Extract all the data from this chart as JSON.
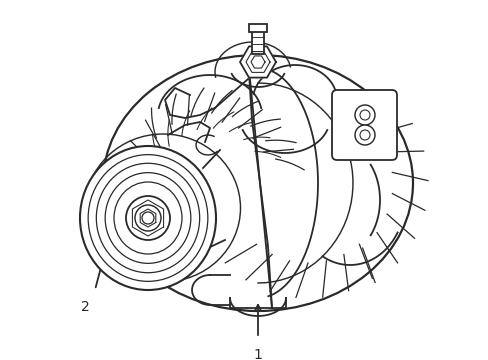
{
  "background_color": "#ffffff",
  "line_color": "#2a2a2a",
  "line_width": 1.3,
  "label1": "1",
  "label2": "2",
  "figsize": [
    4.89,
    3.6
  ],
  "dpi": 100
}
